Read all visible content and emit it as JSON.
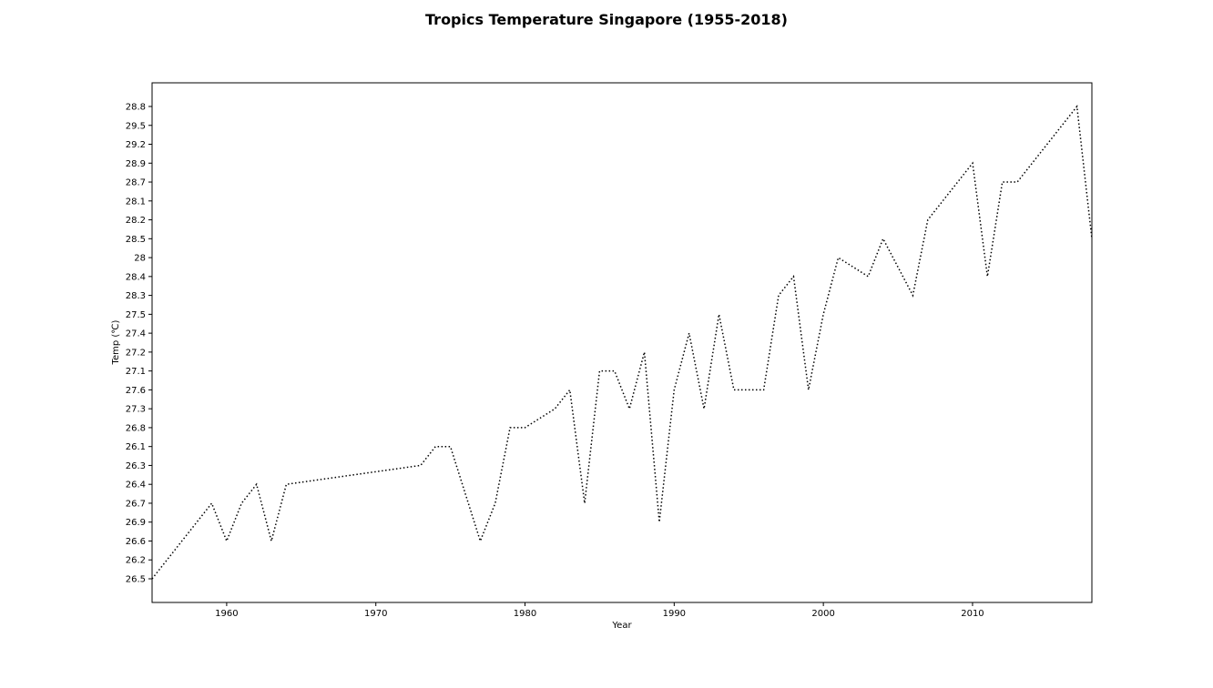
{
  "chart_data": {
    "type": "line",
    "title": "Tropics Temperature Singapore (1955-2018)",
    "xlabel": "Year",
    "ylabel": "Temp (℃)",
    "xlim": [
      1955,
      2018
    ],
    "x_ticks": [
      1960,
      1970,
      1980,
      1990,
      2000,
      2010
    ],
    "y_categories": [
      "26.5",
      "26.2",
      "26.6",
      "26.9",
      "26.7",
      "26.4",
      "26.3",
      "26.1",
      "26.8",
      "27.3",
      "27.6",
      "27.1",
      "27.2",
      "27.4",
      "27.5",
      "28.3",
      "28.4",
      "28",
      "28.5",
      "28.2",
      "28.1",
      "28.7",
      "28.9",
      "29.2",
      "29.5",
      "28.8"
    ],
    "y_axis_note": "categorical axis: tick labels in order of first appearance",
    "grid": false,
    "legend": "none",
    "line_style": "dotted",
    "line_color": "#000000",
    "series": [
      {
        "x": [
          1955,
          1959,
          1960,
          1961,
          1962,
          1963,
          1964,
          1973,
          1974,
          1975,
          1977,
          1978,
          1979,
          1980,
          1982,
          1983,
          1984,
          1985,
          1986,
          1987,
          1988,
          1989,
          1990,
          1991,
          1992,
          1993,
          1994,
          1996,
          1997,
          1998,
          1999,
          2000,
          2001,
          2003,
          2004,
          2006,
          2007,
          2010,
          2011,
          2012,
          2013,
          2017,
          2018
        ],
        "y": [
          "26.5",
          "26.7",
          "26.6",
          "26.7",
          "26.4",
          "26.6",
          "26.4",
          "26.3",
          "26.1",
          "26.1",
          "26.6",
          "26.7",
          "26.8",
          "26.8",
          "27.3",
          "27.6",
          "26.7",
          "27.1",
          "27.1",
          "27.3",
          "27.2",
          "26.9",
          "27.6",
          "27.4",
          "27.3",
          "27.5",
          "27.6",
          "27.6",
          "28.3",
          "28.4",
          "27.6",
          "27.5",
          "28",
          "28.4",
          "28.5",
          "28.3",
          "28.2",
          "28.9",
          "28.4",
          "28.7",
          "28.7",
          "28.8",
          "28.5"
        ]
      }
    ]
  }
}
